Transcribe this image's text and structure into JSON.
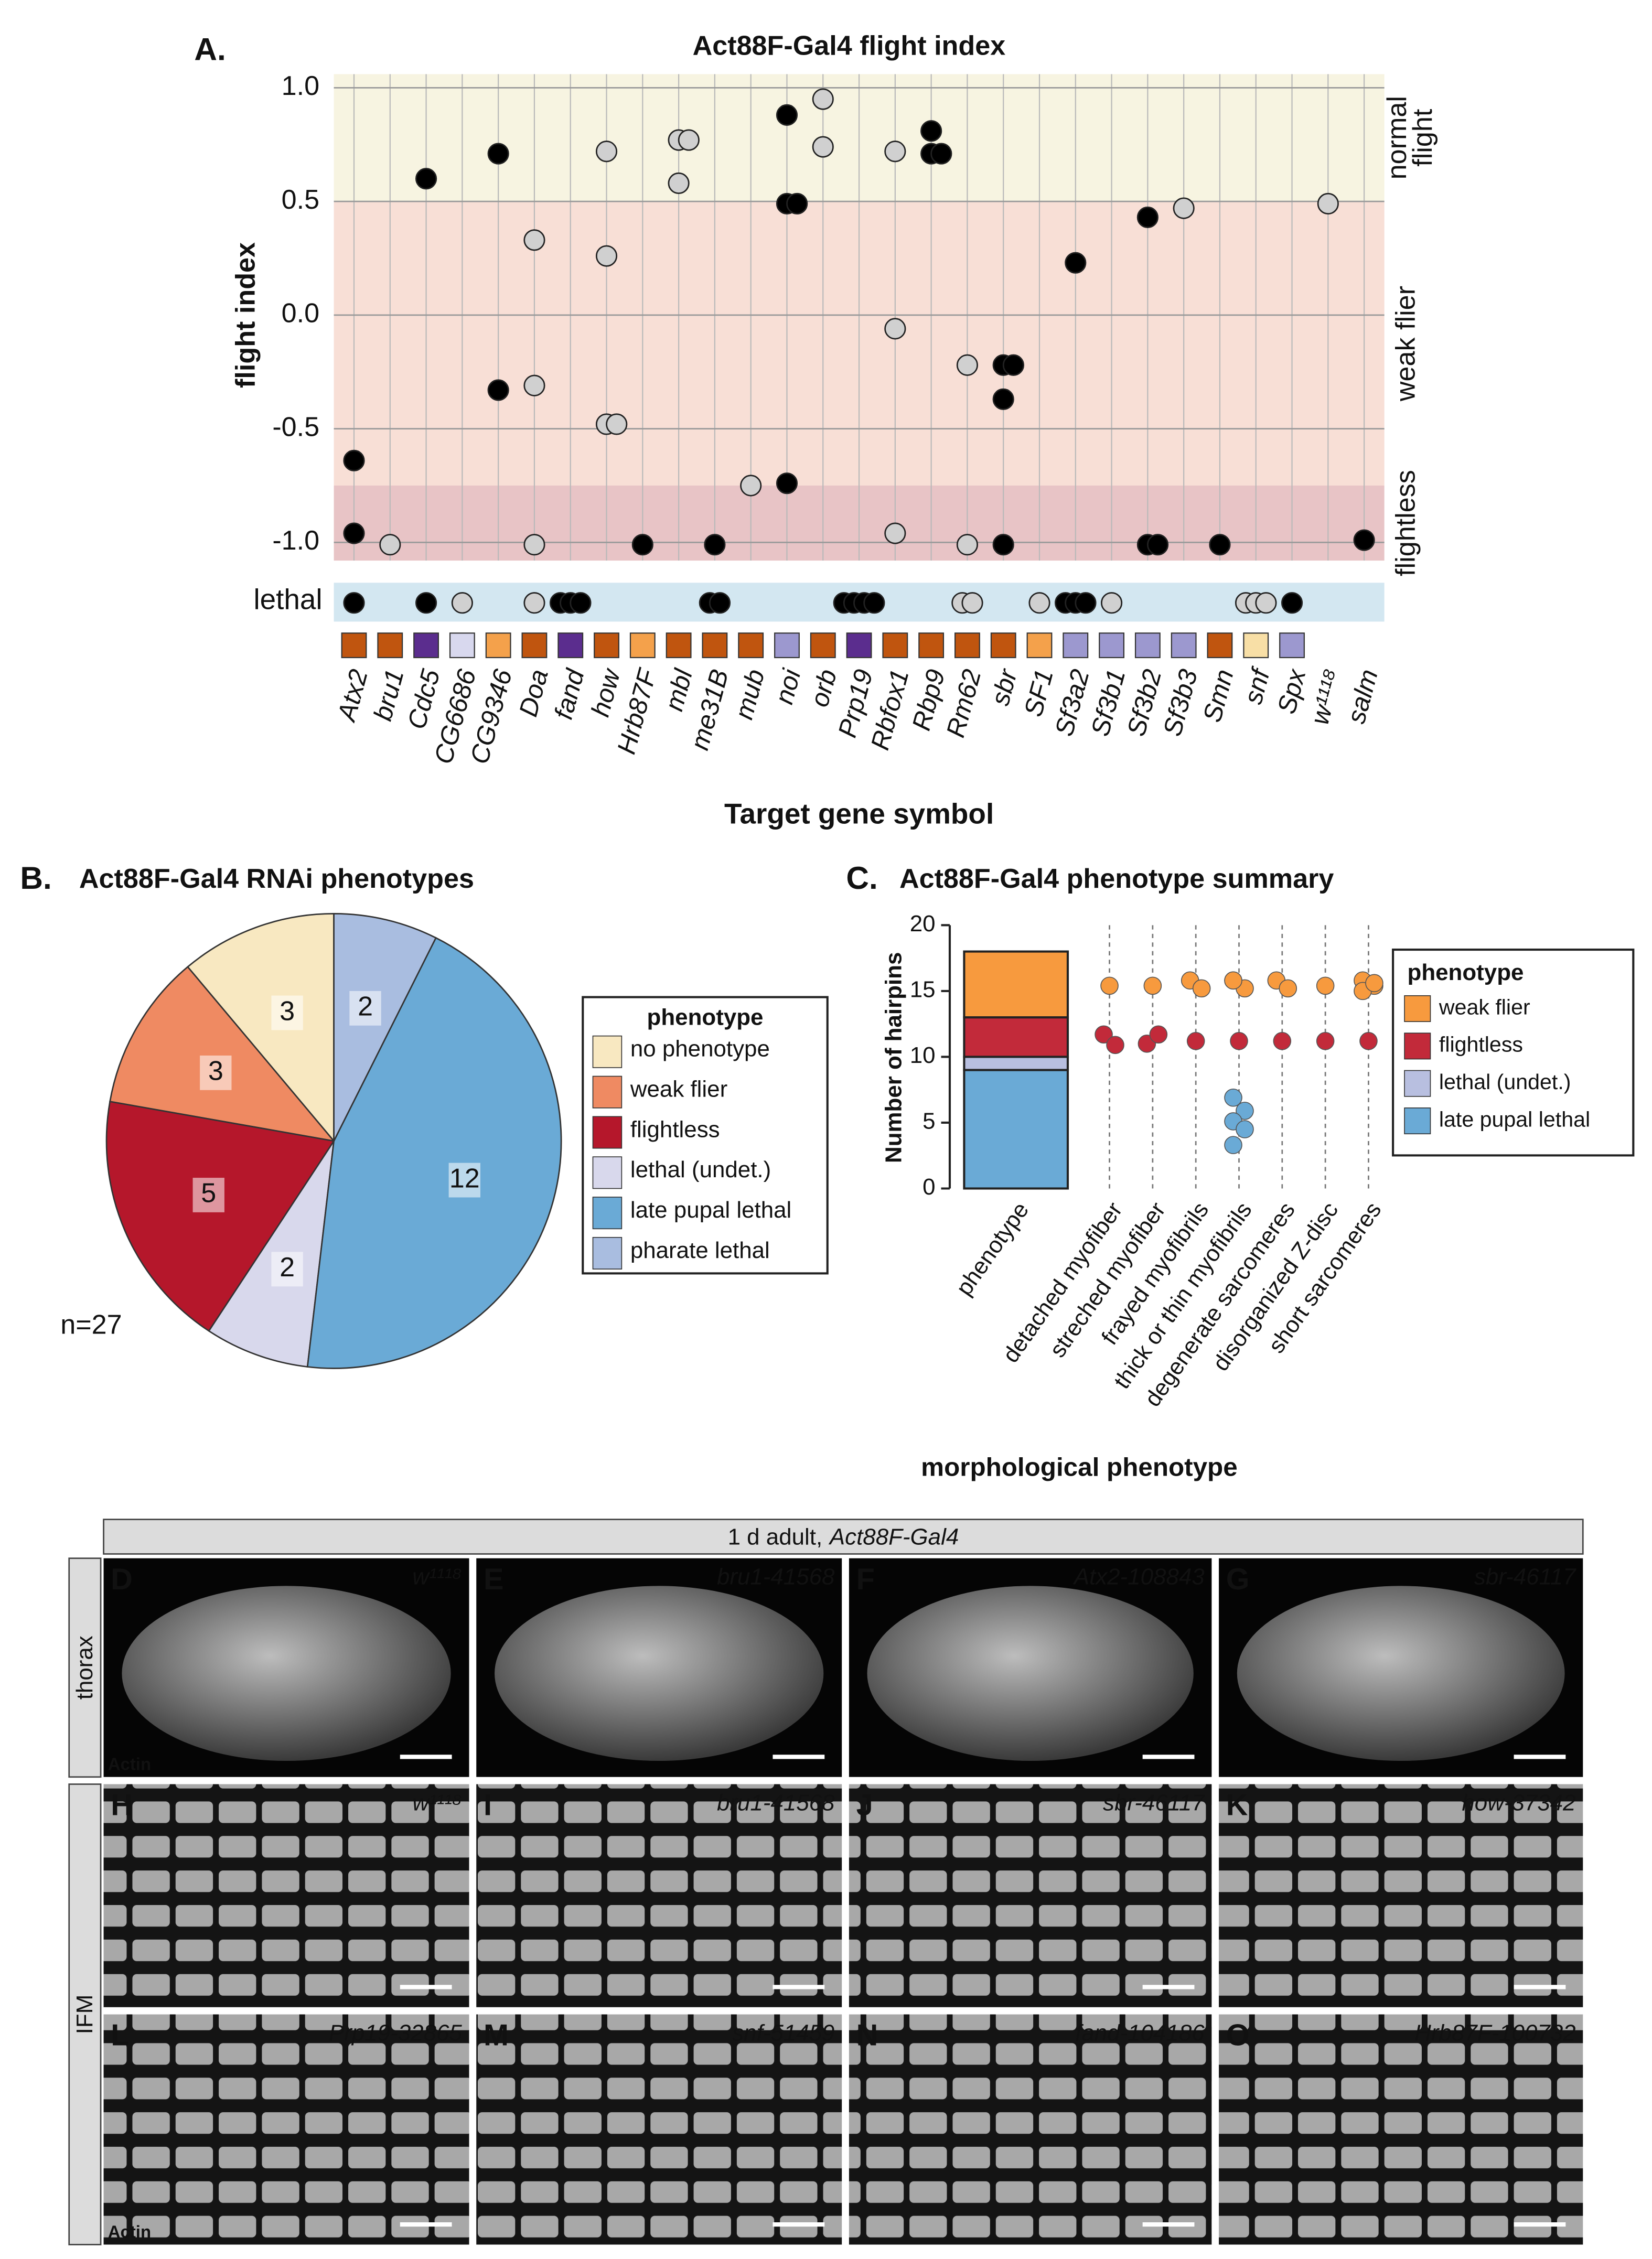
{
  "chart_data": [
    {
      "type": "scatter",
      "panel": "A.",
      "title": "Act88F-Gal4 flight index",
      "ylabel": "flight index",
      "xlabel": "Target gene symbol",
      "categories": [
        "Atx2",
        "bru1",
        "Cdc5",
        "CG6686",
        "CG9346",
        "Doa",
        "fand",
        "how",
        "Hrb87F",
        "mbl",
        "me31B",
        "mub",
        "noi",
        "orb",
        "Prp19",
        "Rbfox1",
        "Rbp9",
        "Rm62",
        "sbr",
        "SF1",
        "Sf3a2",
        "Sf3b1",
        "Sf3b2",
        "Sf3b3",
        "Smn",
        "snf",
        "Spx",
        "w¹¹¹⁸",
        "salm"
      ],
      "category_colors": [
        "#c0550f",
        "#c0550f",
        "#5b2d8e",
        "#d8d8ee",
        "#f4a14b",
        "#c0550f",
        "#5b2d8e",
        "#c0550f",
        "#f4a14b",
        "#c0550f",
        "#c0550f",
        "#c0550f",
        "#9c98cf",
        "#c0550f",
        "#5b2d8e",
        "#c0550f",
        "#c0550f",
        "#c0550f",
        "#c0550f",
        "#f4a14b",
        "#9c98cf",
        "#9c98cf",
        "#9c98cf",
        "#9c98cf",
        "#c0550f",
        "#f8dfa6",
        "#9c98cf",
        null,
        null
      ],
      "ylim": [
        -1.08,
        1.06
      ],
      "yticks": [
        {
          "value": 1,
          "label": "1.0"
        },
        0.5,
        {
          "value": 0,
          "label": "0.0"
        },
        -0.5,
        {
          "value": -1,
          "label": "-1.0"
        }
      ],
      "grid": true,
      "bands": [
        {
          "label": [
            "normal",
            "flight"
          ],
          "from": 0.5,
          "to": 1.06,
          "color": "#f7f4e1",
          "label_color": "#f0b23c"
        },
        {
          "label": [
            "weak flier"
          ],
          "from": -0.75,
          "to": 0.5,
          "color": "#f8dfd6",
          "label_color": "#f0a080"
        },
        {
          "label": [
            "flightless"
          ],
          "from": -1.08,
          "to": -0.75,
          "color": "#e8c4c6",
          "label_color": "#b5172b"
        }
      ],
      "points": [
        {
          "category": "Atx2",
          "y": -0.64,
          "color": "#000000"
        },
        {
          "category": "Atx2",
          "y": -0.96,
          "color": "#000000"
        },
        {
          "category": "bru1",
          "y": -1.01,
          "color": "#d0d0d0"
        },
        {
          "category": "Cdc5",
          "y": 0.6,
          "color": "#000000"
        },
        {
          "category": "CG9346",
          "y": 0.71,
          "color": "#000000"
        },
        {
          "category": "CG9346",
          "y": -0.33,
          "color": "#000000"
        },
        {
          "category": "Doa",
          "y": 0.33,
          "color": "#d0d0d0"
        },
        {
          "category": "Doa",
          "y": -0.31,
          "color": "#d0d0d0"
        },
        {
          "category": "Doa",
          "y": -1.01,
          "color": "#d0d0d0"
        },
        {
          "category": "how",
          "y": 0.72,
          "color": "#d0d0d0"
        },
        {
          "category": "how",
          "y": 0.26,
          "color": "#d0d0d0"
        },
        {
          "category": "how",
          "y": -0.48,
          "color": "#d0d0d0"
        },
        {
          "category": "how",
          "y": -0.48,
          "color": "#d0d0d0"
        },
        {
          "category": "Hrb87F",
          "y": -1.01,
          "color": "#000000"
        },
        {
          "category": "mbl",
          "y": 0.77,
          "color": "#d0d0d0"
        },
        {
          "category": "mbl",
          "y": 0.77,
          "color": "#d0d0d0"
        },
        {
          "category": "mbl",
          "y": 0.58,
          "color": "#d0d0d0"
        },
        {
          "category": "me31B",
          "y": -1.01,
          "color": "#000000"
        },
        {
          "category": "mub",
          "y": -0.75,
          "color": "#d0d0d0"
        },
        {
          "category": "noi",
          "y": 0.88,
          "color": "#000000"
        },
        {
          "category": "noi",
          "y": 0.49,
          "color": "#000000"
        },
        {
          "category": "noi",
          "y": 0.49,
          "color": "#000000"
        },
        {
          "category": "noi",
          "y": -0.74,
          "color": "#000000"
        },
        {
          "category": "orb",
          "y": 0.95,
          "color": "#d0d0d0"
        },
        {
          "category": "orb",
          "y": 0.74,
          "color": "#d0d0d0"
        },
        {
          "category": "Rbfox1",
          "y": 0.72,
          "color": "#d0d0d0"
        },
        {
          "category": "Rbfox1",
          "y": -0.06,
          "color": "#d0d0d0"
        },
        {
          "category": "Rbfox1",
          "y": -0.96,
          "color": "#d0d0d0"
        },
        {
          "category": "Rbp9",
          "y": 0.81,
          "color": "#000000"
        },
        {
          "category": "Rbp9",
          "y": 0.71,
          "color": "#000000"
        },
        {
          "category": "Rbp9",
          "y": 0.71,
          "color": "#000000"
        },
        {
          "category": "Rm62",
          "y": -0.22,
          "color": "#d0d0d0"
        },
        {
          "category": "Rm62",
          "y": -1.01,
          "color": "#d0d0d0"
        },
        {
          "category": "sbr",
          "y": -0.22,
          "color": "#000000"
        },
        {
          "category": "sbr",
          "y": -0.22,
          "color": "#000000"
        },
        {
          "category": "sbr",
          "y": -0.37,
          "color": "#000000"
        },
        {
          "category": "sbr",
          "y": -1.01,
          "color": "#000000"
        },
        {
          "category": "Sf3a2",
          "y": 0.23,
          "color": "#000000"
        },
        {
          "category": "Sf3b2",
          "y": 0.43,
          "color": "#000000"
        },
        {
          "category": "Sf3b2",
          "y": -1.01,
          "color": "#000000"
        },
        {
          "category": "Sf3b2",
          "y": -1.01,
          "color": "#000000"
        },
        {
          "category": "Sf3b3",
          "y": 0.47,
          "color": "#d0d0d0"
        },
        {
          "category": "Smn",
          "y": -1.01,
          "color": "#000000"
        },
        {
          "category": "w¹¹¹⁸",
          "y": 0.49,
          "color": "#d0d0d0"
        },
        {
          "category": "salm",
          "y": -0.99,
          "color": "#000000"
        }
      ],
      "lethal": {
        "label": "lethal",
        "color": "#d3e7f1",
        "label_color": "#2e6da4",
        "points": [
          {
            "category": "Atx2",
            "color": "#000000"
          },
          {
            "category": "Cdc5",
            "color": "#000000"
          },
          {
            "category": "CG6686",
            "color": "#d0d0d0"
          },
          {
            "category": "Doa",
            "color": "#d0d0d0"
          },
          {
            "category": "fand",
            "color": "#000000"
          },
          {
            "category": "fand",
            "color": "#000000"
          },
          {
            "category": "fand",
            "color": "#000000"
          },
          {
            "category": "me31B",
            "color": "#000000"
          },
          {
            "category": "me31B",
            "color": "#000000"
          },
          {
            "category": "Prp19",
            "color": "#000000"
          },
          {
            "category": "Prp19",
            "color": "#000000"
          },
          {
            "category": "Prp19",
            "color": "#000000"
          },
          {
            "category": "Prp19",
            "color": "#000000"
          },
          {
            "category": "Rm62",
            "color": "#d0d0d0"
          },
          {
            "category": "Rm62",
            "color": "#d0d0d0"
          },
          {
            "category": "SF1",
            "color": "#d0d0d0"
          },
          {
            "category": "Sf3a2",
            "color": "#000000"
          },
          {
            "category": "Sf3a2",
            "color": "#000000"
          },
          {
            "category": "Sf3a2",
            "color": "#000000"
          },
          {
            "category": "Sf3b1",
            "color": "#d0d0d0"
          },
          {
            "category": "snf",
            "color": "#d0d0d0"
          },
          {
            "category": "snf",
            "color": "#d0d0d0"
          },
          {
            "category": "snf",
            "color": "#d0d0d0"
          },
          {
            "category": "Spx",
            "color": "#000000"
          }
        ]
      }
    },
    {
      "type": "pie",
      "panel": "B.",
      "title": "Act88F-Gal4 RNAi phenotypes",
      "legend_title": "phenotype",
      "note": "n=27",
      "categories": [
        "no phenotype",
        "weak flier",
        "flightless",
        "lethal (undet.)",
        "late pupal lethal",
        "pharate lethal"
      ],
      "values": [
        3,
        3,
        5,
        2,
        12,
        2
      ],
      "colors": [
        "#f8e8c1",
        "#ef8a62",
        "#b5172b",
        "#d8d8ec",
        "#6aaad6",
        "#a9bde0"
      ]
    },
    {
      "type": "bar",
      "panel": "C.",
      "title": "Act88F-Gal4 phenotype summary",
      "ylabel": "Number of hairpins",
      "xlabel": "morphological phenotype",
      "legend_title": "phenotype",
      "categories": [
        "phenotype",
        "detached myofiber",
        "streched myofiber",
        "frayed myofibrils",
        "thick or thin myofibrils",
        "degenerate sarcomeres",
        "disorganized Z-disc",
        "short sarcomeres"
      ],
      "ylim": [
        0,
        20
      ],
      "yticks": [
        0,
        5,
        10,
        15,
        20
      ],
      "series": [
        {
          "name": "weak flier",
          "color": "#f79a3e",
          "values": [
            [
              5
            ],
            [
              15.4
            ],
            [
              15.4
            ],
            [
              15.8,
              15.2
            ],
            [
              15.8,
              15.2,
              15.8
            ],
            [
              15.8,
              15.2
            ],
            [
              15.4
            ],
            [
              15.8,
              15.4,
              15,
              15.6
            ]
          ]
        },
        {
          "name": "flightless",
          "color": "#c22a3a",
          "values": [
            [
              3
            ],
            [
              11.7,
              10.9
            ],
            [
              11,
              11.7
            ],
            [
              11.2
            ],
            [
              11.2
            ],
            [
              11.2
            ],
            [
              11.2
            ],
            [
              11.2
            ]
          ]
        },
        {
          "name": "lethal (undet.)",
          "color": "#b8bfe0",
          "values": [
            [
              1
            ],
            [],
            [],
            [],
            [],
            [],
            [],
            []
          ]
        },
        {
          "name": "late pupal lethal",
          "color": "#6aaad6",
          "values": [
            [
              9
            ],
            [],
            [],
            [],
            [
              6.9,
              5.9,
              5.1,
              4.5,
              3.3
            ],
            [],
            [],
            []
          ]
        }
      ]
    }
  ],
  "images": {
    "header": [
      "1 d adult,",
      "Act88F-Gal4"
    ],
    "row_labels": [
      "thorax",
      "IFM"
    ],
    "stain": "Actin",
    "panels": [
      {
        "letter": "D",
        "label": "w¹¹¹⁸"
      },
      {
        "letter": "E",
        "label": "bru1-41568"
      },
      {
        "letter": "F",
        "label": "Atx2-108843"
      },
      {
        "letter": "G",
        "label": "sbr-46117"
      },
      {
        "letter": "H",
        "label": "w¹¹¹⁸"
      },
      {
        "letter": "I",
        "label": "bru1-41568"
      },
      {
        "letter": "J",
        "label": "sbr-46117"
      },
      {
        "letter": "K",
        "label": "how-37342"
      },
      {
        "letter": "L",
        "label": "Prp19-32865"
      },
      {
        "letter": "M",
        "label": "snf-51459"
      },
      {
        "letter": "N",
        "label": "fand-104186"
      },
      {
        "letter": "O",
        "label": "Hrb87F-100732"
      }
    ]
  }
}
